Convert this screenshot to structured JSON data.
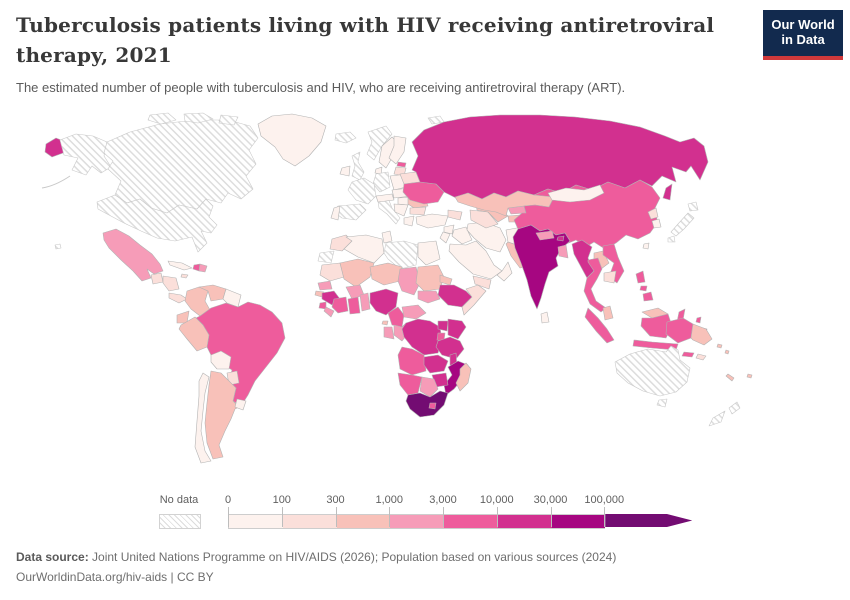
{
  "header": {
    "title": "Tuberculosis patients living with HIV receiving antiretroviral therapy, 2021",
    "subtitle": "The estimated number of people with tuberculosis and HIV, who are receiving antiretroviral therapy (ART).",
    "logo": {
      "line1": "Our World",
      "line2": "in Data",
      "bg_color": "#122a4e",
      "accent_color": "#d0393b"
    }
  },
  "legend": {
    "no_data_label": "No data",
    "tick_labels": [
      "0",
      "100",
      "300",
      "1,000",
      "3,000",
      "10,000",
      "30,000",
      "100,000"
    ]
  },
  "footer": {
    "datasource_label": "Data source:",
    "datasource_text": " Joint United Nations Programme on HIV/AIDS (2026); Population based on various sources (2024)",
    "link_line": "OurWorldinData.org/hiv-aids | CC BY"
  },
  "colors": {
    "ocean": "#ffffff",
    "border": "#b3b3b3",
    "no_data_stroke": "#c9c9c9",
    "title_text": "#383838",
    "body_text": "#5b5b5b"
  },
  "chart_data": {
    "type": "choropleth_map",
    "title": "Tuberculosis patients living with HIV receiving antiretroviral therapy, 2021",
    "unit": "people receiving ART",
    "legend_position": "bottom",
    "no_data_style": "diagonal-hatch",
    "bins": [
      {
        "label": "0–100",
        "color": "#fdf2ee"
      },
      {
        "label": "100–300",
        "color": "#fbdfda"
      },
      {
        "label": "300–1,000",
        "color": "#f8c1b9"
      },
      {
        "label": "1,000–3,000",
        "color": "#f69cb8"
      },
      {
        "label": "3,000–10,000",
        "color": "#ee5c9c"
      },
      {
        "label": "10,000–30,000",
        "color": "#d2308f"
      },
      {
        "label": "30,000–100,000",
        "color": "#a60681"
      },
      {
        "label": "over 100,000",
        "color": "#730c72"
      }
    ],
    "countries": {
      "united-states": "no-data",
      "canada": "no-data",
      "canada-arctic-1": "no-data",
      "canada-arctic-2": "no-data",
      "canada-arctic-3": "no-data",
      "alaska": "no-data",
      "hawaii": "no-data",
      "greenland": 1,
      "mexico": 4,
      "guatemala": 2,
      "honduras-nicaragua": 2,
      "costarica-panama": 2,
      "cuba": 1,
      "jamaica": 2,
      "haiti": 5,
      "dominican-republic": 4,
      "colombia": 3,
      "venezuela": 3,
      "guianas": 1,
      "ecuador": 3,
      "peru": 3,
      "brazil": 5,
      "bolivia": 1,
      "paraguay": 2,
      "uruguay": 1,
      "argentina": 3,
      "chile": 1,
      "iceland": "no-data",
      "united-kingdom": "no-data",
      "ireland": 1,
      "norway": "no-data",
      "sweden": 1,
      "finland": 1,
      "denmark": 1,
      "estonia": 5,
      "latvia-lithuania": 2,
      "poland": 1,
      "germany": "no-data",
      "france": "no-data",
      "spain": "no-data",
      "portugal": 1,
      "italy": "no-data",
      "alpine-states": 1,
      "czech-slovakia": 1,
      "hungary": 1,
      "balkans": 1,
      "greece": 1,
      "romania": 3,
      "bulgaria": 2,
      "moldova": 3,
      "belarus": 2,
      "ukraine": 5,
      "russia": 6,
      "chukotka": 6,
      "sakhalin": 6,
      "svalbard": "no-data",
      "novaya-zemlya": "no-data",
      "turkey": 1,
      "caucasus": 2,
      "syria": 1,
      "iraq": 1,
      "jordan-israel": 1,
      "saudi-arabia": 1,
      "yemen": 2,
      "oman": 1,
      "iran": 1,
      "afghanistan": 1,
      "pakistan": 3,
      "turkmenistan": 2,
      "uzbekistan": 3,
      "kyrgyzstan": 4,
      "tajikistan": 3,
      "kazakhstan": 3,
      "india": 7,
      "nepal": 4,
      "bhutan": 6,
      "bangladesh": 4,
      "sri-lanka": 1,
      "china": 5,
      "mongolia": 1,
      "north-korea": 2,
      "south-korea": 1,
      "taiwan": 1,
      "japan-hokkaido": "no-data",
      "japan-honshu": "no-data",
      "japan-kyushu": "no-data",
      "myanmar": 6,
      "laos": 3,
      "thailand": 5,
      "vietnam": 5,
      "cambodia": 2,
      "malaysia-peninsula": 3,
      "sumatra": 5,
      "java": 5,
      "borneo-malaysia": 3,
      "kalimantan": 5,
      "sulawesi": 5,
      "moluccas-1": 5,
      "moluccas-2": 5,
      "lesser-sunda": 5,
      "timor": 2,
      "papua-indonesia": 5,
      "papua-new-guinea": 3,
      "solomons-1": 3,
      "solomons-2": 3,
      "new-caledonia": 3,
      "fiji": 3,
      "philippines-luzon": 5,
      "philippines-visayas": 5,
      "philippines-mindanao": 5,
      "australia": "no-data",
      "tasmania": "no-data",
      "new-zealand-north": "no-data",
      "new-zealand-south": "no-data",
      "morocco": 2,
      "western-sahara": "no-data",
      "algeria": 1,
      "tunisia": 1,
      "libya": "no-data",
      "egypt": 1,
      "mauritania": 2,
      "mali": 3,
      "niger": 3,
      "chad": 4,
      "sudan": 3,
      "eritrea": 3,
      "ethiopia": 6,
      "somalia": 2,
      "south-sudan": 4,
      "senegal": 4,
      "guinea-bissau": 3,
      "guinea": 6,
      "sierra-leone": 5,
      "liberia": 4,
      "cote-divoire": 5,
      "burkina-faso": 4,
      "ghana": 5,
      "togo-benin": 4,
      "nigeria": 6,
      "cameroon": 5,
      "central-african-republic": 4,
      "gabon": 4,
      "congo": 4,
      "equatorial-guinea": 3,
      "drc": 6,
      "uganda": 6,
      "kenya": 6,
      "rwanda-burundi": 5,
      "tanzania": 6,
      "angola": 5,
      "zambia": 6,
      "malawi": 6,
      "mozambique": 7,
      "zimbabwe": 6,
      "botswana": 4,
      "namibia": 5,
      "south-africa": 8,
      "lesotho": 5,
      "madagascar": 3
    }
  }
}
